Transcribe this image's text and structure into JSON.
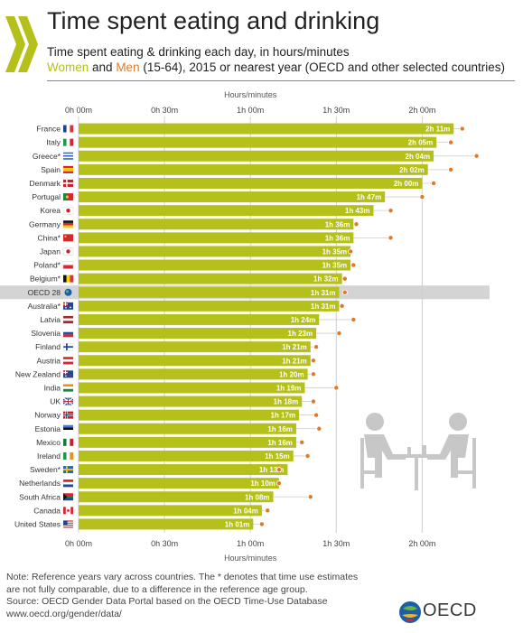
{
  "header": {
    "title": "Time spent eating and drinking",
    "subtitle_line1": "Time spent eating & drinking each day, in hours/minutes",
    "subtitle_women": "Women",
    "subtitle_and": " and ",
    "subtitle_men": "Men",
    "subtitle_rest": " (15-64), 2015 or nearest year (OECD and other selected countries)"
  },
  "colors": {
    "women_bar": "#b5c01a",
    "men_dot": "#e07a2a",
    "highlight_row": "#d4d4d4",
    "grid": "#cfcfcf"
  },
  "chart_data": {
    "type": "bar",
    "orientation": "horizontal",
    "axis_title_top": "Hours/minutes",
    "axis_title_bottom": "Hours/minutes",
    "xlim_minutes": [
      0,
      150
    ],
    "ticks": [
      {
        "value": 0,
        "label": "0h 00m"
      },
      {
        "value": 30,
        "label": "0h 30m"
      },
      {
        "value": 60,
        "label": "1h 00m"
      },
      {
        "value": 90,
        "label": "1h 30m"
      },
      {
        "value": 120,
        "label": "2h 00m"
      }
    ],
    "highlight_category": "OECD 28",
    "categories": [
      "France",
      "Italy",
      "Greece*",
      "Spain",
      "Denmark",
      "Portugal",
      "Korea",
      "Germany",
      "China*",
      "Japan",
      "Poland*",
      "Belgium*",
      "OECD 28",
      "Australia*",
      "Latvia",
      "Slovenia",
      "Finland",
      "Austria",
      "New Zealand",
      "India",
      "UK",
      "Norway",
      "Estonia",
      "Mexico",
      "Ireland",
      "Sweden*",
      "Netherlands",
      "South Africa",
      "Canada",
      "United States"
    ],
    "series": [
      {
        "name": "Women",
        "values": [
          131,
          125,
          124,
          122,
          120,
          107,
          103,
          96,
          96,
          95,
          95,
          92,
          91,
          91,
          84,
          83,
          81,
          81,
          80,
          79,
          78,
          77,
          76,
          76,
          75,
          73,
          70,
          68,
          64,
          61
        ],
        "labels": [
          "2h 11m",
          "2h 05m",
          "2h 04m",
          "2h 02m",
          "2h 00m",
          "1h 47m",
          "1h 43m",
          "1h 36m",
          "1h 36m",
          "1h 35m",
          "1h 35m",
          "1h 32m",
          "1h 31m",
          "1h 31m",
          "1h 24m",
          "1h 23m",
          "1h 21m",
          "1h 21m",
          "1h 20m",
          "1h 19m",
          "1h 18m",
          "1h 17m",
          "1h 16m",
          "1h 16m",
          "1h 15m",
          "1h 13m",
          "1h 10m",
          "1h 08m",
          "1h 04m",
          "1h 01m"
        ]
      },
      {
        "name": "Men",
        "values": [
          134,
          130,
          139,
          130,
          124,
          120,
          109,
          97,
          109,
          95,
          96,
          93,
          93,
          92,
          96,
          91,
          83,
          82,
          82,
          90,
          82,
          83,
          84,
          78,
          80,
          70,
          70,
          81,
          66,
          64
        ]
      }
    ]
  },
  "flags": [
    "france",
    "italy",
    "greece",
    "spain",
    "denmark",
    "portugal",
    "korea",
    "germany",
    "china",
    "japan",
    "poland",
    "belgium",
    "oecd",
    "australia",
    "latvia",
    "slovenia",
    "finland",
    "austria",
    "new-zealand",
    "india",
    "uk",
    "norway",
    "estonia",
    "mexico",
    "ireland",
    "sweden",
    "netherlands",
    "south-africa",
    "canada",
    "united-states"
  ],
  "footer": {
    "note_line1": "Note: Reference years vary across countries. The * denotes that time use estimates",
    "note_line2": "are not fully comparable, due to a difference in the reference age group.",
    "source_line": "Source: OECD Gender Data Portal based on the OECD Time-Use Database",
    "url": "www.oecd.org/gender/data/",
    "logo_text": "OECD"
  }
}
